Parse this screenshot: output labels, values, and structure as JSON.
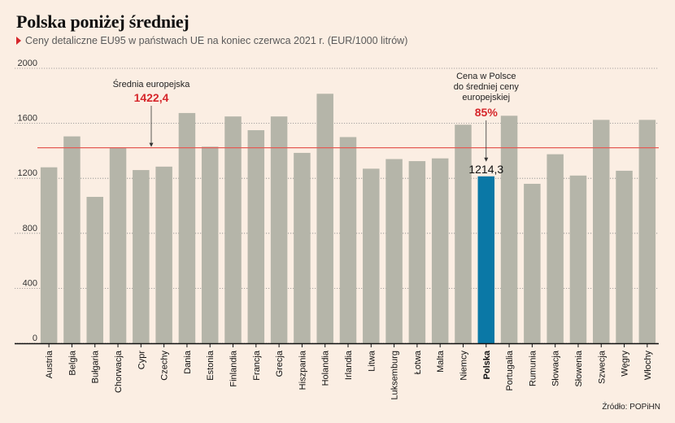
{
  "title": "Polska poniżej średniej",
  "subtitle": "Ceny detaliczne EU95 w państwach UE na koniec czerwca 2021 r. (EUR/1000 litrów)",
  "source": "Źródło: POPiHN",
  "colors": {
    "background": "#fbeee3",
    "bar": "#b5b5a9",
    "highlight": "#0a78a6",
    "average_line": "#e45b55",
    "accent_red": "#d6262b",
    "grid": "#8a8a8a"
  },
  "chart_data": {
    "type": "bar",
    "title": "Polska poniżej średniej",
    "xlabel": "",
    "ylabel": "",
    "ylim": [
      0,
      2000
    ],
    "yticks": [
      0,
      400,
      800,
      1200,
      1600,
      2000
    ],
    "ytick_labels": [
      "0",
      "400",
      "800",
      "1200",
      "1600",
      "2000"
    ],
    "grid": true,
    "categories": [
      "Austria",
      "Belgia",
      "Bułgaria",
      "Chorwacja",
      "Cypr",
      "Czechy",
      "Dania",
      "Estonia",
      "Finlandia",
      "Francja",
      "Grecja",
      "Hiszpania",
      "Holandia",
      "Irlandia",
      "Litwa",
      "Luksemburg",
      "Łotwa",
      "Malta",
      "Niemcy",
      "Polska",
      "Portugalia",
      "Rumunia",
      "Słowacja",
      "Słowenia",
      "Szwecja",
      "Węgry",
      "Włochy"
    ],
    "values": [
      1280,
      1505,
      1065,
      1425,
      1260,
      1285,
      1675,
      1430,
      1650,
      1550,
      1650,
      1385,
      1815,
      1500,
      1270,
      1340,
      1325,
      1345,
      1590,
      1214.3,
      1655,
      1160,
      1375,
      1220,
      1625,
      1255,
      1625
    ],
    "highlight_category": "Polska",
    "average": {
      "value": 1422.4,
      "label": "Średnia europejska",
      "value_label": "1422,4"
    },
    "annotations": {
      "poland_value_label": "1214,3",
      "poland_note_lines": [
        "Cena w Polsce",
        "do średniej ceny",
        "europejskiej"
      ],
      "poland_percent": "85%"
    }
  }
}
